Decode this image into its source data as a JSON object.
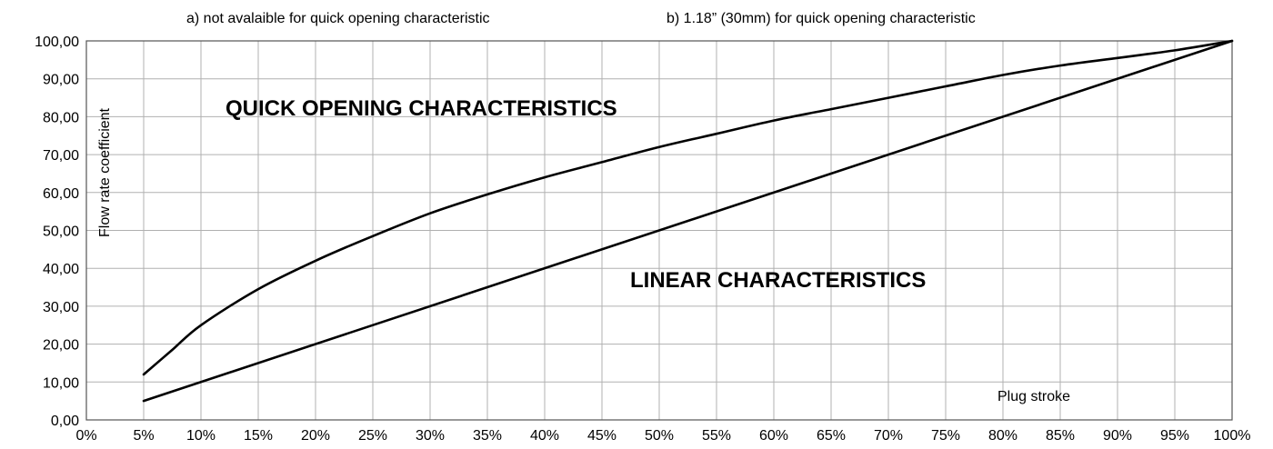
{
  "notes": {
    "a": "a) not avalaible for quick opening characteristic",
    "b": "b) 1.18” (30mm) for quick opening characteristic"
  },
  "chart_data": {
    "type": "line",
    "title": "",
    "xlabel": "Plug stroke",
    "ylabel": "Flow rate coefficient",
    "xlim": [
      0,
      100
    ],
    "ylim": [
      0,
      100
    ],
    "x_ticks": [
      "0%",
      "5%",
      "10%",
      "15%",
      "20%",
      "25%",
      "30%",
      "35%",
      "40%",
      "45%",
      "50%",
      "55%",
      "60%",
      "65%",
      "70%",
      "75%",
      "80%",
      "85%",
      "90%",
      "95%",
      "100%"
    ],
    "y_ticks": [
      "0,00",
      "10,00",
      "20,00",
      "30,00",
      "40,00",
      "50,00",
      "60,00",
      "70,00",
      "80,00",
      "90,00",
      "100,00"
    ],
    "grid": true,
    "series": [
      {
        "name": "QUICK OPENING CHARACTERISTICS",
        "x": [
          5,
          7.5,
          10,
          15,
          20,
          25,
          30,
          35,
          40,
          45,
          50,
          55,
          60,
          65,
          70,
          75,
          80,
          85,
          90,
          95,
          100
        ],
        "y": [
          12,
          18.5,
          25,
          34.5,
          42,
          48.5,
          54.5,
          59.5,
          64,
          68,
          72,
          75.5,
          79,
          82,
          85,
          88,
          91,
          93.5,
          95.5,
          97.5,
          100
        ]
      },
      {
        "name": "LINEAR CHARACTERISTICS",
        "x": [
          5,
          100
        ],
        "y": [
          5,
          100
        ]
      }
    ],
    "colors": {
      "line": "#000000",
      "grid": "#b0b0b0",
      "frame": "#555555"
    }
  }
}
